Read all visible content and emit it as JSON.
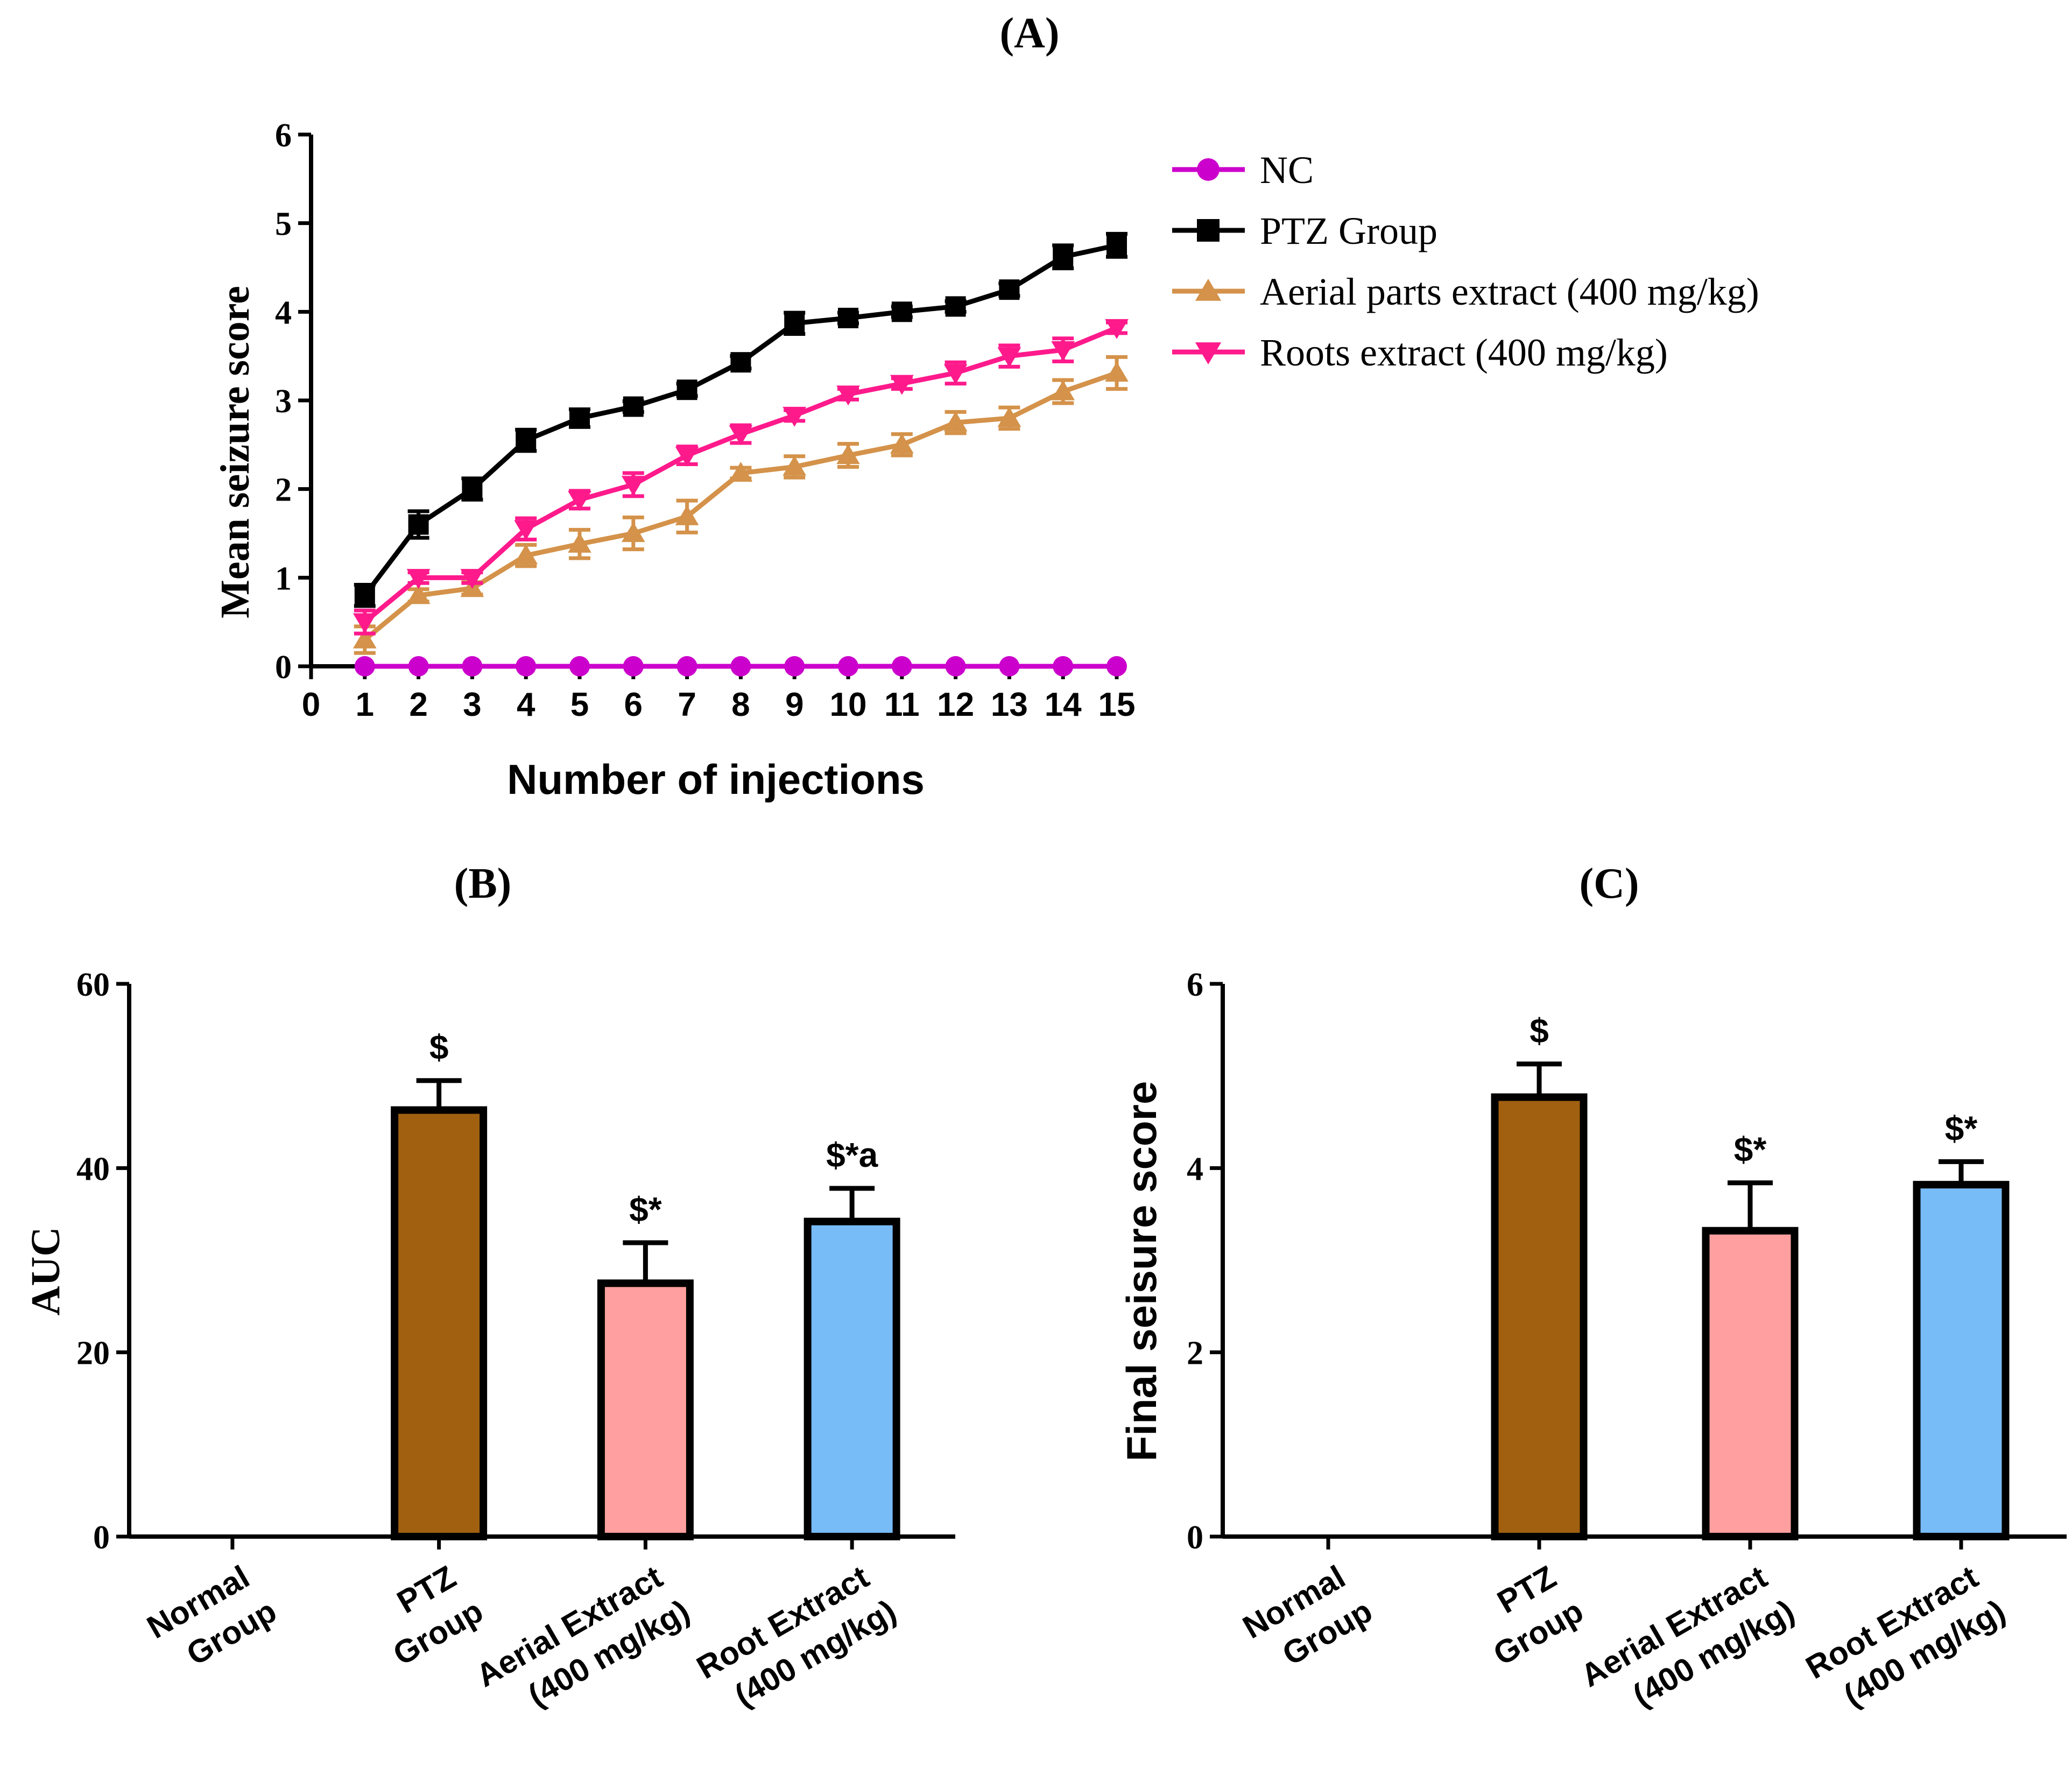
{
  "chart_data": [
    {
      "panel": "(A)",
      "type": "line",
      "xlabel": "Number of injections",
      "ylabel": "Mean seizure score",
      "xlim": [
        0,
        15
      ],
      "ylim": [
        0,
        6
      ],
      "xticks": [
        0,
        1,
        2,
        3,
        4,
        5,
        6,
        7,
        8,
        9,
        10,
        11,
        12,
        13,
        14,
        15
      ],
      "yticks": [
        0,
        1,
        2,
        3,
        4,
        5,
        6
      ],
      "x": [
        1,
        2,
        3,
        4,
        5,
        6,
        7,
        8,
        9,
        10,
        11,
        12,
        13,
        14,
        15
      ],
      "legend_position": "right",
      "series": [
        {
          "name": "NC",
          "color": "#cc00cc",
          "marker": "circle",
          "values": [
            0,
            0,
            0,
            0,
            0,
            0,
            0,
            0,
            0,
            0,
            0,
            0,
            0,
            0,
            0
          ],
          "errors": [
            0,
            0,
            0,
            0,
            0,
            0,
            0,
            0,
            0,
            0,
            0,
            0,
            0,
            0,
            0
          ]
        },
        {
          "name": "PTZ Group",
          "color": "#000000",
          "marker": "square",
          "values": [
            0.8,
            1.6,
            2.0,
            2.55,
            2.8,
            2.93,
            3.12,
            3.43,
            3.87,
            3.93,
            4.0,
            4.06,
            4.25,
            4.62,
            4.75
          ],
          "errors": [
            0.12,
            0.15,
            0.12,
            0.12,
            0.1,
            0.06,
            0.07,
            0.07,
            0.12,
            0.06,
            0.06,
            0.06,
            0.07,
            0.13,
            0.13
          ]
        },
        {
          "name": "Aerial parts extract (400 mg/kg)",
          "color": "#d4924a",
          "marker": "triangle-up",
          "values": [
            0.3,
            0.8,
            0.88,
            1.25,
            1.38,
            1.5,
            1.69,
            2.18,
            2.25,
            2.38,
            2.5,
            2.75,
            2.8,
            3.1,
            3.31
          ],
          "errors": [
            0.15,
            0.07,
            0.07,
            0.12,
            0.16,
            0.18,
            0.18,
            0.06,
            0.12,
            0.13,
            0.12,
            0.12,
            0.12,
            0.13,
            0.18
          ]
        },
        {
          "name": "Roots extract (400 mg/kg)",
          "color": "#ff1a8c",
          "marker": "triangle-down",
          "values": [
            0.5,
            1.0,
            1.0,
            1.55,
            1.88,
            2.05,
            2.38,
            2.62,
            2.83,
            3.07,
            3.19,
            3.31,
            3.5,
            3.57,
            3.82
          ],
          "errors": [
            0.13,
            0.06,
            0.06,
            0.12,
            0.1,
            0.13,
            0.1,
            0.1,
            0.06,
            0.06,
            0.06,
            0.12,
            0.12,
            0.13,
            0.06
          ]
        }
      ]
    },
    {
      "panel": "(B)",
      "type": "bar",
      "ylabel": "AUC",
      "ylim": [
        0,
        60
      ],
      "yticks": [
        0,
        20,
        40,
        60
      ],
      "categories": [
        {
          "line1": "Normal",
          "line2": "Group"
        },
        {
          "line1": "PTZ",
          "line2": "Group"
        },
        {
          "line1": "Aerial Extract",
          "line2": "(400 mg/kg)"
        },
        {
          "line1": "Root Extract",
          "line2": "(400 mg/kg)"
        }
      ],
      "values": [
        0,
        46.3,
        27.5,
        34.2
      ],
      "errors": [
        0,
        3.2,
        4.4,
        3.6
      ],
      "colors": [
        "#ffffff",
        "#a06010",
        "#ff9f9f",
        "#77bbf7"
      ],
      "annotations": [
        "",
        "$",
        "$*",
        "$*a"
      ]
    },
    {
      "panel": "(C)",
      "type": "bar",
      "ylabel": "Final seisure score",
      "ylim": [
        0,
        6
      ],
      "yticks": [
        0,
        2,
        4,
        6
      ],
      "categories": [
        {
          "line1": "Normal",
          "line2": "Group"
        },
        {
          "line1": "PTZ",
          "line2": "Group"
        },
        {
          "line1": "Aerial Extract",
          "line2": "(400 mg/kg)"
        },
        {
          "line1": "Root Extract",
          "line2": "(400 mg/kg)"
        }
      ],
      "values": [
        0,
        4.77,
        3.32,
        3.82
      ],
      "errors": [
        0,
        0.36,
        0.52,
        0.25
      ],
      "colors": [
        "#ffffff",
        "#a06010",
        "#ff9f9f",
        "#77bbf7"
      ],
      "annotations": [
        "",
        "$",
        "$*",
        "$*"
      ]
    }
  ]
}
